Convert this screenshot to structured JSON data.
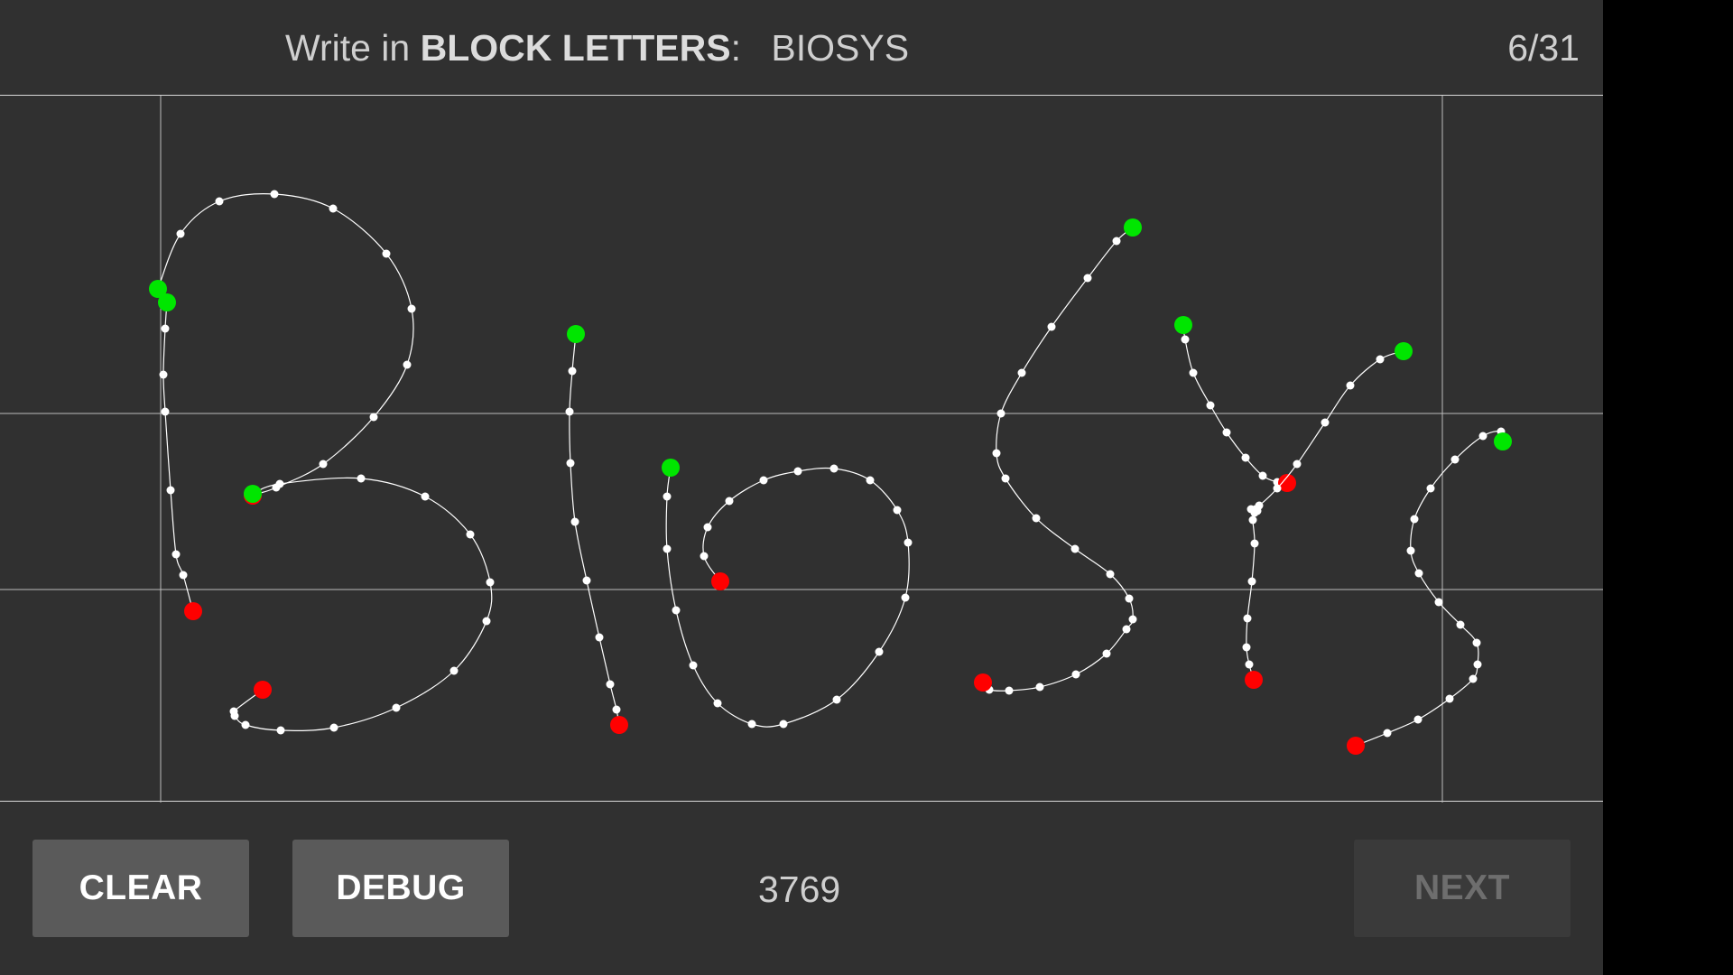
{
  "header": {
    "instruction_prefix": "Write in",
    "instruction_emphasis": "BLOCK LETTERS",
    "instruction_suffix": ":",
    "target_word": "BIOSYS",
    "progress": "6/31"
  },
  "footer": {
    "clear_label": "CLEAR",
    "debug_label": "DEBUG",
    "score": "3769",
    "next_label": "NEXT",
    "next_enabled": false
  },
  "colors": {
    "background": "#303030",
    "stroke": "#ffffff",
    "stroke_start": "#00e600",
    "stroke_end": "#ff0000",
    "guide_lines": "#bdbdbd"
  }
}
